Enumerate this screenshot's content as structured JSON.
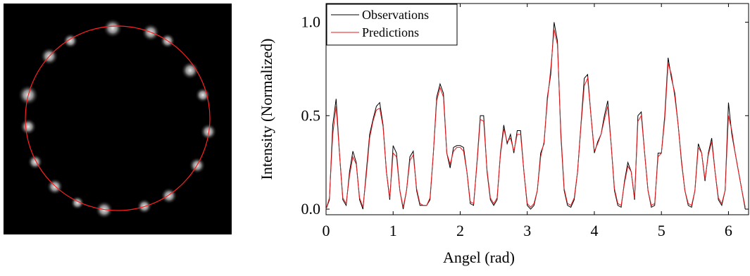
{
  "chart_data": {
    "type": "line",
    "xlabel": "Angel (rad)",
    "ylabel": "Intensity (Normalized)",
    "x": [
      0,
      0.05,
      0.1,
      0.15,
      0.2,
      0.25,
      0.3,
      0.35,
      0.4,
      0.45,
      0.5,
      0.55,
      0.6,
      0.65,
      0.7,
      0.75,
      0.8,
      0.85,
      0.9,
      0.95,
      1.0,
      1.05,
      1.1,
      1.15,
      1.2,
      1.25,
      1.3,
      1.35,
      1.4,
      1.45,
      1.5,
      1.55,
      1.6,
      1.65,
      1.7,
      1.75,
      1.8,
      1.85,
      1.9,
      1.95,
      2.0,
      2.05,
      2.1,
      2.15,
      2.2,
      2.25,
      2.3,
      2.35,
      2.4,
      2.45,
      2.5,
      2.55,
      2.6,
      2.65,
      2.7,
      2.75,
      2.8,
      2.85,
      2.9,
      2.95,
      3.0,
      3.05,
      3.1,
      3.15,
      3.2,
      3.25,
      3.3,
      3.35,
      3.4,
      3.45,
      3.5,
      3.55,
      3.6,
      3.65,
      3.7,
      3.75,
      3.8,
      3.85,
      3.9,
      3.95,
      4.0,
      4.05,
      4.1,
      4.15,
      4.2,
      4.25,
      4.3,
      4.35,
      4.4,
      4.45,
      4.5,
      4.55,
      4.6,
      4.65,
      4.7,
      4.75,
      4.8,
      4.85,
      4.9,
      4.95,
      5.0,
      5.05,
      5.1,
      5.15,
      5.2,
      5.25,
      5.3,
      5.35,
      5.4,
      5.45,
      5.5,
      5.55,
      5.6,
      5.65,
      5.7,
      5.75,
      5.8,
      5.85,
      5.9,
      5.95,
      6.0,
      6.05,
      6.1,
      6.15,
      6.2,
      6.25
    ],
    "series": [
      {
        "name": "Observations",
        "color": "#000000",
        "values": [
          0,
          0.05,
          0.45,
          0.59,
          0.3,
          0.05,
          0.02,
          0.2,
          0.31,
          0.25,
          0.05,
          0,
          0.2,
          0.4,
          0.48,
          0.55,
          0.57,
          0.45,
          0.2,
          0.05,
          0.34,
          0.3,
          0.1,
          0,
          0.1,
          0.28,
          0.31,
          0.1,
          0.02,
          0.02,
          0.02,
          0.05,
          0.3,
          0.6,
          0.67,
          0.62,
          0.3,
          0.22,
          0.33,
          0.34,
          0.34,
          0.33,
          0.2,
          0.03,
          0.02,
          0.25,
          0.5,
          0.5,
          0.2,
          0.05,
          0.02,
          0.05,
          0.3,
          0.45,
          0.35,
          0.4,
          0.3,
          0.42,
          0.42,
          0.2,
          0.02,
          0,
          0.02,
          0.1,
          0.3,
          0.35,
          0.6,
          0.72,
          1.0,
          0.9,
          0.4,
          0.1,
          0.02,
          0.01,
          0.05,
          0.2,
          0.45,
          0.7,
          0.72,
          0.5,
          0.3,
          0.36,
          0.4,
          0.5,
          0.58,
          0.35,
          0.1,
          0.02,
          0.01,
          0.15,
          0.25,
          0.2,
          0.05,
          0.5,
          0.52,
          0.3,
          0.1,
          0.01,
          0.02,
          0.3,
          0.3,
          0.5,
          0.81,
          0.7,
          0.62,
          0.45,
          0.25,
          0.1,
          0.02,
          0.01,
          0.1,
          0.35,
          0.3,
          0.15,
          0.3,
          0.38,
          0.2,
          0.05,
          0.02,
          0.1,
          0.57,
          0.4,
          0.3,
          0.2,
          0.1,
          0
        ]
      },
      {
        "name": "Predictions",
        "color": "#e8191c",
        "values": [
          0,
          0.06,
          0.4,
          0.55,
          0.3,
          0.06,
          0.03,
          0.18,
          0.28,
          0.24,
          0.06,
          0.01,
          0.18,
          0.38,
          0.47,
          0.53,
          0.54,
          0.44,
          0.2,
          0.06,
          0.3,
          0.28,
          0.1,
          0.01,
          0.1,
          0.26,
          0.29,
          0.11,
          0.03,
          0.02,
          0.02,
          0.06,
          0.3,
          0.58,
          0.65,
          0.6,
          0.3,
          0.24,
          0.31,
          0.33,
          0.33,
          0.31,
          0.2,
          0.04,
          0.03,
          0.24,
          0.48,
          0.47,
          0.21,
          0.06,
          0.03,
          0.06,
          0.29,
          0.43,
          0.36,
          0.38,
          0.31,
          0.4,
          0.4,
          0.2,
          0.03,
          0.01,
          0.03,
          0.1,
          0.28,
          0.36,
          0.58,
          0.75,
          0.96,
          0.88,
          0.42,
          0.11,
          0.03,
          0.02,
          0.06,
          0.2,
          0.44,
          0.66,
          0.7,
          0.5,
          0.31,
          0.35,
          0.4,
          0.48,
          0.55,
          0.35,
          0.11,
          0.03,
          0.02,
          0.14,
          0.23,
          0.2,
          0.06,
          0.47,
          0.5,
          0.3,
          0.1,
          0.02,
          0.03,
          0.28,
          0.3,
          0.48,
          0.78,
          0.72,
          0.6,
          0.45,
          0.26,
          0.1,
          0.03,
          0.02,
          0.1,
          0.33,
          0.3,
          0.16,
          0.29,
          0.36,
          0.2,
          0.06,
          0.03,
          0.1,
          0.5,
          0.42,
          0.3,
          0.2,
          0.1,
          0.01
        ]
      }
    ],
    "xlim": [
      0,
      6.3
    ],
    "xticks": [
      0,
      1,
      2,
      3,
      4,
      5,
      6
    ],
    "ylim": [
      -0.03,
      1.1
    ],
    "yticks": [
      {
        "value": 0,
        "label": "0.0"
      },
      0.5,
      {
        "value": 1,
        "label": "1.0"
      }
    ],
    "legend": "upper left"
  }
}
